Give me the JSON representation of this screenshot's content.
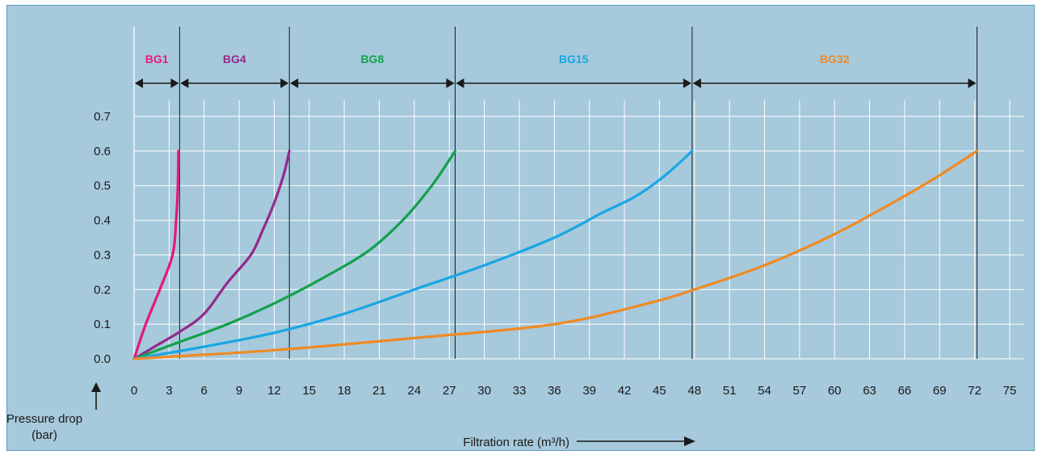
{
  "chart_data": {
    "type": "line",
    "xlabel": "Filtration rate (m³/h)",
    "ylabel_line1": "Pressure drop",
    "ylabel_line2": "(bar)",
    "x_ticks": [
      0,
      3,
      6,
      9,
      12,
      15,
      18,
      21,
      24,
      27,
      30,
      33,
      36,
      39,
      42,
      45,
      48,
      51,
      54,
      57,
      60,
      63,
      66,
      69,
      72,
      75
    ],
    "y_ticks": [
      "0.0",
      "0.1",
      "0.2",
      "0.3",
      "0.4",
      "0.5",
      "0.6",
      "0.7"
    ],
    "xlim": [
      0,
      75
    ],
    "ylim": [
      0,
      0.7
    ],
    "grid": true,
    "ranges": [
      {
        "name": "BG1",
        "from": 0,
        "to": 3.9,
        "color": "#e5177b"
      },
      {
        "name": "BG4",
        "from": 3.9,
        "to": 13.3,
        "color": "#932a8c"
      },
      {
        "name": "BG8",
        "from": 13.3,
        "to": 27.5,
        "color": "#12a14b"
      },
      {
        "name": "BG15",
        "from": 27.5,
        "to": 47.8,
        "color": "#1aa6e3"
      },
      {
        "name": "BG32",
        "from": 47.8,
        "to": 72.2,
        "color": "#f08a24"
      }
    ],
    "series": [
      {
        "name": "BG1",
        "color": "#e5177b",
        "points": [
          [
            0,
            0
          ],
          [
            1,
            0.1
          ],
          [
            2.2,
            0.2
          ],
          [
            3.3,
            0.3
          ],
          [
            3.6,
            0.4
          ],
          [
            3.75,
            0.5
          ],
          [
            3.8,
            0.6
          ]
        ]
      },
      {
        "name": "BG4",
        "color": "#932a8c",
        "points": [
          [
            0,
            0
          ],
          [
            2,
            0.04
          ],
          [
            4,
            0.08
          ],
          [
            6,
            0.13
          ],
          [
            8,
            0.22
          ],
          [
            10,
            0.3
          ],
          [
            11,
            0.37
          ],
          [
            12,
            0.45
          ],
          [
            12.8,
            0.53
          ],
          [
            13.3,
            0.6
          ]
        ]
      },
      {
        "name": "BG8",
        "color": "#12a14b",
        "points": [
          [
            0,
            0
          ],
          [
            4,
            0.05
          ],
          [
            8,
            0.1
          ],
          [
            12,
            0.16
          ],
          [
            16,
            0.23
          ],
          [
            20,
            0.31
          ],
          [
            23,
            0.4
          ],
          [
            25.5,
            0.5
          ],
          [
            27.5,
            0.6
          ]
        ]
      },
      {
        "name": "BG15",
        "color": "#1aa6e3",
        "points": [
          [
            0,
            0
          ],
          [
            6,
            0.035
          ],
          [
            12,
            0.075
          ],
          [
            18,
            0.13
          ],
          [
            24,
            0.2
          ],
          [
            30,
            0.27
          ],
          [
            36,
            0.35
          ],
          [
            40,
            0.42
          ],
          [
            43,
            0.47
          ],
          [
            45.5,
            0.53
          ],
          [
            47.8,
            0.6
          ]
        ]
      },
      {
        "name": "BG32",
        "color": "#f08a24",
        "points": [
          [
            0,
            0
          ],
          [
            12,
            0.025
          ],
          [
            24,
            0.06
          ],
          [
            36,
            0.1
          ],
          [
            44,
            0.16
          ],
          [
            48,
            0.2
          ],
          [
            54,
            0.27
          ],
          [
            60,
            0.36
          ],
          [
            66,
            0.47
          ],
          [
            69,
            0.53
          ],
          [
            72.2,
            0.6
          ]
        ]
      }
    ]
  }
}
